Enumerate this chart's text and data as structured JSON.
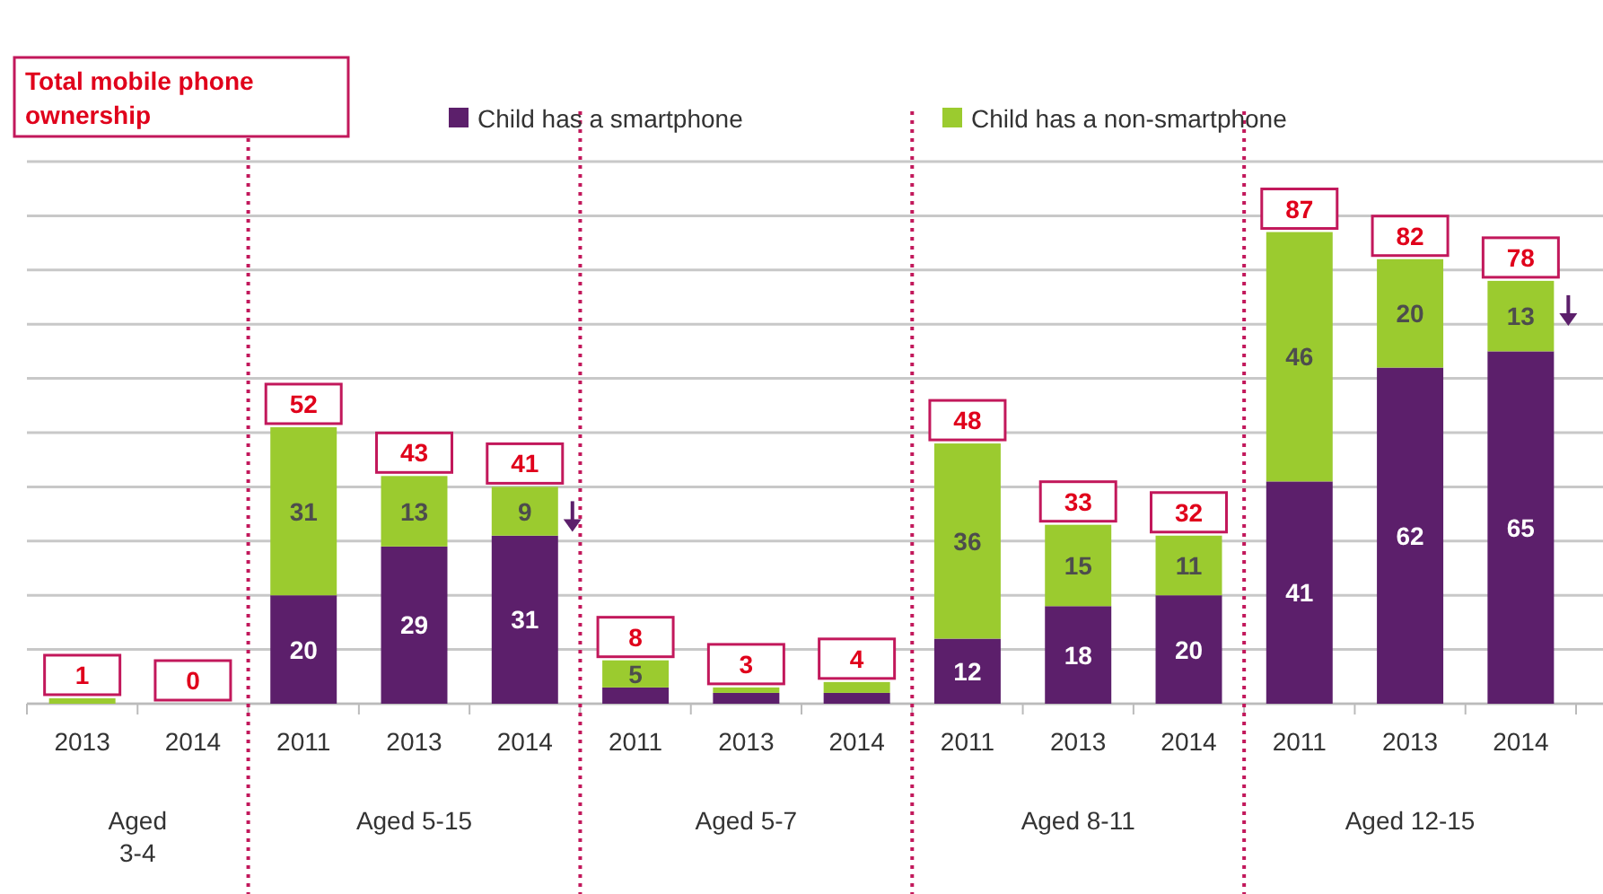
{
  "chart_data": {
    "type": "bar",
    "stacked": true,
    "categories": [
      "2013",
      "2014",
      "2011",
      "2013",
      "2014",
      "2011",
      "2013",
      "2014",
      "2011",
      "2013",
      "2014",
      "2011",
      "2013",
      "2014"
    ],
    "series": [
      {
        "name": "Child has a smartphone",
        "color": "#5c1f6b",
        "values": [
          0,
          0,
          20,
          29,
          31,
          3,
          2,
          2,
          12,
          18,
          20,
          41,
          62,
          65
        ],
        "value_labels": [
          null,
          null,
          "20",
          "29",
          "31",
          null,
          null,
          null,
          "12",
          "18",
          "20",
          "41",
          "62",
          "65"
        ]
      },
      {
        "name": "Child has a non-smartphone",
        "color": "#9bcb2f",
        "values": [
          1,
          0,
          31,
          13,
          9,
          5,
          1,
          2,
          36,
          15,
          11,
          46,
          20,
          13
        ],
        "value_labels": [
          null,
          null,
          "31",
          "13",
          "9",
          "5",
          null,
          null,
          "36",
          "15",
          "11",
          "46",
          "20",
          "13"
        ]
      }
    ],
    "totals": [
      "1",
      "0",
      "52",
      "43",
      "41",
      "8",
      "3",
      "4",
      "48",
      "33",
      "32",
      "87",
      "82",
      "78"
    ],
    "ylim": [
      0,
      100
    ],
    "yticks": [
      {
        "value": 0,
        "label": null
      },
      {
        "value": 10,
        "label": null
      },
      {
        "value": 20,
        "label": null
      },
      {
        "value": 30,
        "label": null
      },
      {
        "value": 40,
        "label": null
      },
      {
        "value": 50,
        "label": null
      },
      {
        "value": 60,
        "label": null
      },
      {
        "value": 70,
        "label": null
      },
      {
        "value": 80,
        "label": null
      },
      {
        "value": 90,
        "label": null
      },
      {
        "value": 100,
        "label": null
      }
    ],
    "tick_labels": "x",
    "grid": "y",
    "legend": "top",
    "annotations": [
      "Total mobile phone ownership",
      "Aged 3-4",
      "Aged 5-15",
      "Aged 5-7",
      "Aged 8-11",
      "Aged 12-15"
    ]
  }
}
